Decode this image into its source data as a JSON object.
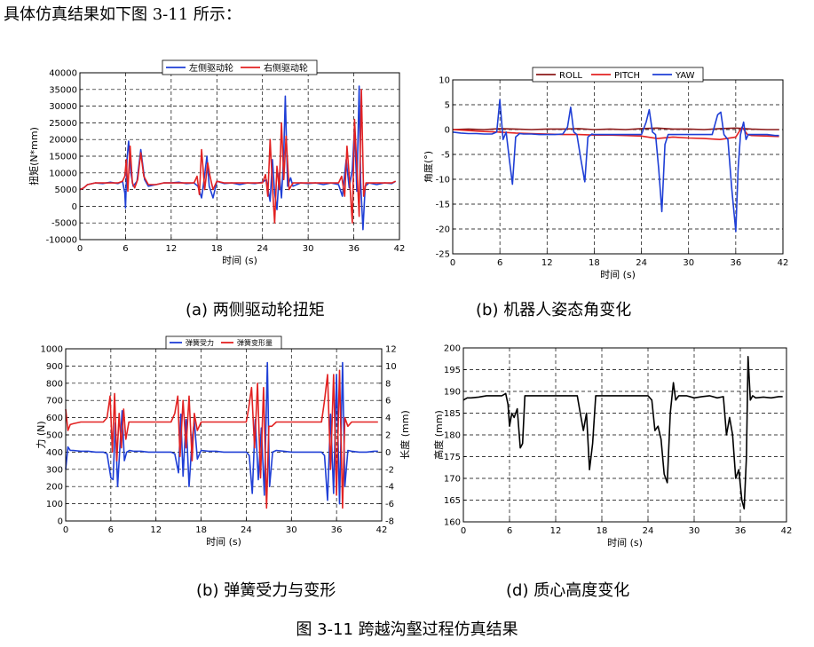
{
  "intro_text": "具体仿真结果如下图 3-11 所示：",
  "figure_caption": "图 3-11 跨越沟壑过程仿真结果",
  "panels": [
    {
      "caption": "(a)  两侧驱动轮扭矩"
    },
    {
      "caption": "(b) 机器人姿态角变化"
    },
    {
      "caption": "(b)  弹簧受力与变形"
    },
    {
      "caption": "(d) 质心高度变化"
    }
  ],
  "chart_data": [
    {
      "type": "line",
      "xlabel": "时间 (s)",
      "ylabel": "扭矩(N*mm)",
      "xlim": [
        0,
        42
      ],
      "ylim": [
        -10000,
        40000
      ],
      "xticks": [
        0,
        6,
        12,
        18,
        24,
        30,
        36,
        42
      ],
      "yticks": [
        -10000,
        -5000,
        0,
        5000,
        10000,
        15000,
        20000,
        25000,
        30000,
        35000,
        40000
      ],
      "grid": true,
      "legend_position": "top",
      "series": [
        {
          "name": "左侧驱动轮",
          "color": "#1f3fd6",
          "x": [
            0,
            0.5,
            1,
            2,
            3,
            4,
            5,
            5.6,
            5.9,
            6.0,
            6.2,
            6.4,
            6.7,
            7.0,
            7.5,
            8.0,
            8.5,
            9,
            10,
            11,
            12,
            13,
            14,
            15,
            15.5,
            16,
            16.3,
            16.7,
            17.0,
            17.5,
            18,
            19,
            20,
            21,
            22,
            23,
            24,
            24.5,
            25,
            25.3,
            25.6,
            25.9,
            26.2,
            26.5,
            26.8,
            27.0,
            27.3,
            27.7,
            28,
            29,
            30,
            31,
            32,
            33,
            34,
            34.5,
            35,
            35.4,
            35.8,
            36.1,
            36.4,
            36.7,
            36.9,
            37.2,
            37.5,
            38,
            39,
            40,
            41,
            41.5
          ],
          "values": [
            5000,
            5500,
            6500,
            7000,
            6800,
            7200,
            6800,
            7500,
            4000,
            -500,
            14000,
            19500,
            10000,
            6000,
            7500,
            17000,
            8000,
            6000,
            6500,
            7000,
            7000,
            7200,
            6800,
            7000,
            6000,
            2500,
            7500,
            15000,
            6000,
            2500,
            7500,
            6800,
            7000,
            6500,
            7000,
            6800,
            7200,
            8000,
            1500,
            14000,
            4000,
            -1000,
            10000,
            2500,
            16000,
            33000,
            6000,
            8500,
            6000,
            7000,
            6800,
            7000,
            6500,
            7000,
            6500,
            3000,
            14000,
            5500,
            11000,
            24000,
            4500,
            36000,
            7000,
            -7000,
            6000,
            7000,
            6500,
            7000,
            6800,
            7500
          ]
        },
        {
          "name": "右侧驱动轮",
          "color": "#e22222",
          "x": [
            0,
            0.5,
            1,
            2,
            3,
            4,
            5,
            5.6,
            5.9,
            6.1,
            6.3,
            6.6,
            6.9,
            7.2,
            7.6,
            8.0,
            8.4,
            9,
            10,
            11,
            12,
            13,
            14,
            15,
            15.4,
            15.7,
            16.0,
            16.4,
            16.8,
            17.1,
            17.5,
            18,
            19,
            20,
            21,
            22,
            23,
            24,
            24.4,
            24.7,
            25.0,
            25.3,
            25.6,
            25.9,
            26.2,
            26.5,
            26.8,
            27.1,
            27.5,
            28,
            29,
            30,
            31,
            32,
            33,
            34,
            34.4,
            34.8,
            35.1,
            35.5,
            35.8,
            36.1,
            36.4,
            36.7,
            37.0,
            37.3,
            37.6,
            38,
            39,
            40,
            41,
            41.5
          ],
          "values": [
            5000,
            5500,
            6500,
            7000,
            7000,
            7000,
            7000,
            7500,
            9000,
            14000,
            4500,
            18000,
            7000,
            5500,
            8000,
            16000,
            9000,
            6500,
            6500,
            7000,
            7000,
            7000,
            7000,
            7000,
            9000,
            3500,
            17000,
            5000,
            13000,
            9000,
            5000,
            7500,
            7000,
            7000,
            7000,
            7000,
            7000,
            7000,
            9500,
            3000,
            20000,
            6000,
            -5000,
            12000,
            5000,
            25000,
            8000,
            21000,
            5000,
            7000,
            7000,
            7000,
            7000,
            7000,
            7000,
            7000,
            9000,
            3000,
            18000,
            6000,
            -5000,
            26000,
            12000,
            -3000,
            35000,
            3000,
            7000,
            7000,
            7000,
            7000,
            7000,
            7500
          ]
        }
      ]
    },
    {
      "type": "line",
      "xlabel": "时间 (s)",
      "ylabel": "角度(°)",
      "xlim": [
        0,
        42
      ],
      "ylim": [
        -25,
        10
      ],
      "xticks": [
        0,
        6,
        12,
        18,
        24,
        30,
        36,
        42
      ],
      "yticks": [
        -25,
        -20,
        -15,
        -10,
        -5,
        0,
        5,
        10
      ],
      "grid": true,
      "legend_position": "top",
      "series": [
        {
          "name": "ROLL",
          "color": "#8b1a1a",
          "x": [
            0,
            2,
            4,
            6,
            8,
            10,
            12,
            14,
            16,
            18,
            20,
            22,
            24,
            26,
            28,
            30,
            32,
            34,
            36,
            38,
            40,
            41.5
          ],
          "values": [
            0,
            0.1,
            0,
            0.2,
            0.1,
            0,
            0.1,
            0.1,
            0.2,
            0,
            0.1,
            0,
            0.2,
            0.3,
            0.1,
            0.1,
            0,
            0.2,
            0.3,
            0.1,
            0,
            0
          ]
        },
        {
          "name": "PITCH",
          "color": "#e22222",
          "x": [
            0,
            2,
            4,
            6,
            8,
            10,
            12,
            14,
            16,
            18,
            20,
            22,
            24,
            26,
            28,
            30,
            32,
            34,
            36,
            36.8,
            37.5,
            38,
            40,
            41.5
          ],
          "values": [
            0,
            -0.2,
            -0.4,
            -0.5,
            -0.7,
            -0.8,
            -0.9,
            -1.0,
            -1.0,
            -1.1,
            -1.1,
            -1.2,
            -1.3,
            -1.8,
            -1.5,
            -1.7,
            -1.8,
            -2.0,
            -1.5,
            0.5,
            -1.0,
            -1.2,
            -1.3,
            -1.4
          ]
        },
        {
          "name": "YAW",
          "color": "#1f3fd6",
          "x": [
            0,
            1,
            2,
            3,
            4,
            5,
            5.6,
            6.0,
            6.4,
            6.8,
            7.2,
            7.6,
            8.0,
            8.5,
            9,
            10,
            11,
            12,
            13,
            14,
            14.6,
            15.0,
            15.4,
            15.8,
            16.3,
            16.8,
            17.2,
            17.7,
            18,
            19,
            20,
            21,
            22,
            23,
            24,
            24.6,
            25.0,
            25.4,
            25.8,
            26.2,
            26.6,
            27.0,
            27.4,
            28,
            29,
            30,
            31,
            32,
            33,
            33.7,
            34.1,
            34.5,
            35.0,
            35.5,
            36.0,
            36.3,
            36.6,
            37.0,
            37.3,
            37.6,
            38,
            39,
            40,
            41,
            41.5
          ],
          "values": [
            -0.5,
            -0.7,
            -0.8,
            -0.8,
            -0.9,
            -0.9,
            -0.5,
            6.0,
            -2.0,
            -0.5,
            -6.0,
            -11.0,
            -1.5,
            -0.8,
            -0.9,
            -0.9,
            -1.0,
            -1.0,
            -1.0,
            -0.9,
            0.5,
            4.5,
            -0.5,
            -1.0,
            -6.0,
            -10.5,
            -1.5,
            -0.9,
            -1.0,
            -1.0,
            -1.0,
            -1.0,
            -1.0,
            -1.0,
            -1.0,
            1.5,
            4.0,
            -0.5,
            -1.0,
            -8.0,
            -16.5,
            -3.0,
            -1.0,
            -1.0,
            -1.0,
            -1.0,
            -1.0,
            -1.0,
            -1.0,
            3.0,
            3.5,
            -1.0,
            -2.0,
            -12.0,
            -20.5,
            -8.0,
            -1.0,
            1.5,
            -2.0,
            -1.0,
            -1.0,
            -1.0,
            -1.0,
            -1.2,
            -1.2
          ]
        }
      ]
    },
    {
      "type": "line",
      "xlabel": "时间 (s)",
      "ylabel": "力 (N)",
      "y2label": "长度 (mm)",
      "xlim": [
        0,
        42
      ],
      "ylim": [
        0,
        1000
      ],
      "y2lim": [
        -8,
        12
      ],
      "xticks": [
        0,
        6,
        12,
        18,
        24,
        30,
        36,
        42
      ],
      "yticks": [
        0,
        100,
        200,
        300,
        400,
        500,
        600,
        700,
        800,
        900,
        1000
      ],
      "y2ticks": [
        -8,
        -6,
        -4,
        -2,
        0,
        2,
        4,
        6,
        8,
        10,
        12
      ],
      "grid": true,
      "legend_position": "top",
      "series": [
        {
          "name": "弹簧受力",
          "color": "#1f3fd6",
          "axis": "left",
          "x": [
            0,
            0.3,
            0.6,
            1,
            2,
            3,
            4,
            5,
            5.5,
            6.0,
            6.3,
            6.6,
            6.9,
            7.2,
            7.5,
            7.8,
            8.1,
            8.5,
            9,
            10,
            11,
            12,
            13,
            14,
            14.5,
            15.0,
            15.3,
            15.6,
            16.0,
            16.4,
            16.8,
            17.1,
            17.5,
            18,
            19,
            20,
            21,
            22,
            23,
            24,
            24.4,
            24.8,
            25.2,
            25.6,
            26.0,
            26.4,
            26.8,
            27.1,
            27.5,
            28,
            29,
            30,
            31,
            32,
            33,
            34,
            34.4,
            34.8,
            35.2,
            35.6,
            36.0,
            36.4,
            36.8,
            37.1,
            37.5,
            38,
            39,
            40,
            41,
            41.5
          ],
          "values": [
            300,
            430,
            410,
            410,
            405,
            405,
            400,
            400,
            390,
            250,
            240,
            570,
            200,
            420,
            640,
            350,
            400,
            410,
            405,
            405,
            400,
            400,
            400,
            400,
            390,
            280,
            620,
            260,
            590,
            200,
            470,
            580,
            360,
            410,
            405,
            405,
            400,
            400,
            400,
            400,
            380,
            160,
            590,
            240,
            540,
            150,
            920,
            200,
            400,
            410,
            405,
            400,
            400,
            400,
            400,
            400,
            380,
            120,
            620,
            160,
            850,
            100,
            920,
            200,
            410,
            405,
            400,
            400,
            405,
            405
          ]
        },
        {
          "name": "弹簧变形量",
          "color": "#e22222",
          "axis": "right",
          "x": [
            0,
            0.3,
            0.6,
            1,
            2,
            3,
            4,
            5,
            5.5,
            5.9,
            6.2,
            6.5,
            6.8,
            7.1,
            7.4,
            7.7,
            8.0,
            8.4,
            9,
            10,
            11,
            12,
            13,
            14,
            14.5,
            14.9,
            15.2,
            15.6,
            16.0,
            16.4,
            16.8,
            17.1,
            17.5,
            18,
            19,
            20,
            21,
            22,
            23,
            24,
            24.3,
            24.7,
            25.1,
            25.5,
            25.9,
            26.3,
            26.7,
            27.0,
            27.4,
            28,
            29,
            30,
            31,
            32,
            33,
            34,
            34.4,
            34.8,
            35.2,
            35.6,
            36.0,
            36.4,
            36.8,
            37.1,
            37.5,
            38,
            39,
            40,
            41,
            41.5
          ],
          "values": [
            5.0,
            2.5,
            3.2,
            3.3,
            3.5,
            3.5,
            3.5,
            3.5,
            4.0,
            6.5,
            0.0,
            6.8,
            -1.0,
            4.5,
            0.5,
            5.0,
            1.5,
            3.5,
            3.5,
            3.5,
            3.5,
            3.5,
            3.5,
            3.5,
            4.5,
            6.5,
            -0.5,
            6.0,
            0.5,
            6.5,
            -1.0,
            4.5,
            2.5,
            3.5,
            3.5,
            3.5,
            3.5,
            3.5,
            3.5,
            3.5,
            5.0,
            7.5,
            0.5,
            8.0,
            -3.0,
            7.5,
            -6.5,
            3.0,
            3.0,
            3.5,
            3.5,
            3.5,
            3.5,
            3.5,
            3.5,
            3.5,
            6.0,
            9.0,
            -2.0,
            9.0,
            -5.0,
            9.5,
            -6.5,
            4.0,
            3.0,
            3.5,
            3.5,
            3.5,
            3.5,
            3.5
          ]
        }
      ]
    },
    {
      "type": "line",
      "xlabel": "时间 (s)",
      "ylabel": "高度 (mm)",
      "xlim": [
        0,
        42
      ],
      "ylim": [
        160,
        200
      ],
      "xticks": [
        0,
        6,
        12,
        18,
        24,
        30,
        36,
        42
      ],
      "yticks": [
        160,
        165,
        170,
        175,
        180,
        185,
        190,
        195,
        200
      ],
      "grid": true,
      "series": [
        {
          "name": "质心高度",
          "color": "#000000",
          "x": [
            0,
            0.5,
            1,
            2,
            3,
            4,
            5,
            5.5,
            5.8,
            6.0,
            6.3,
            6.6,
            7.0,
            7.4,
            7.7,
            8.0,
            8.3,
            9,
            10,
            11,
            12,
            13,
            14,
            14.8,
            15.2,
            15.6,
            16.0,
            16.4,
            16.8,
            17.2,
            17.6,
            18,
            19,
            20,
            21,
            22,
            23,
            24,
            24.5,
            24.9,
            25.3,
            25.7,
            26.1,
            26.5,
            26.9,
            27.3,
            27.6,
            28,
            29,
            30,
            31,
            32,
            33,
            33.8,
            34.2,
            34.6,
            35.0,
            35.4,
            35.8,
            36.2,
            36.5,
            36.8,
            37.0,
            37.3,
            37.6,
            38,
            39,
            40,
            41,
            41.5
          ],
          "values": [
            188,
            188.5,
            188.5,
            188.7,
            189,
            189,
            189,
            189.5,
            187,
            182,
            185,
            184,
            186,
            177,
            178,
            189,
            189,
            189,
            189,
            189,
            189,
            189,
            189,
            189,
            185,
            181,
            185,
            172,
            178,
            189,
            189,
            189,
            189,
            189,
            189,
            189,
            189,
            189,
            188,
            181,
            182,
            179,
            171,
            169,
            185,
            192,
            188,
            189,
            189,
            188.5,
            188.8,
            189,
            188.5,
            188.8,
            180,
            184,
            180,
            170,
            172,
            165,
            163,
            175,
            198,
            188,
            189,
            188.5,
            188.7,
            188.5,
            188.8,
            188.8
          ]
        }
      ]
    }
  ]
}
